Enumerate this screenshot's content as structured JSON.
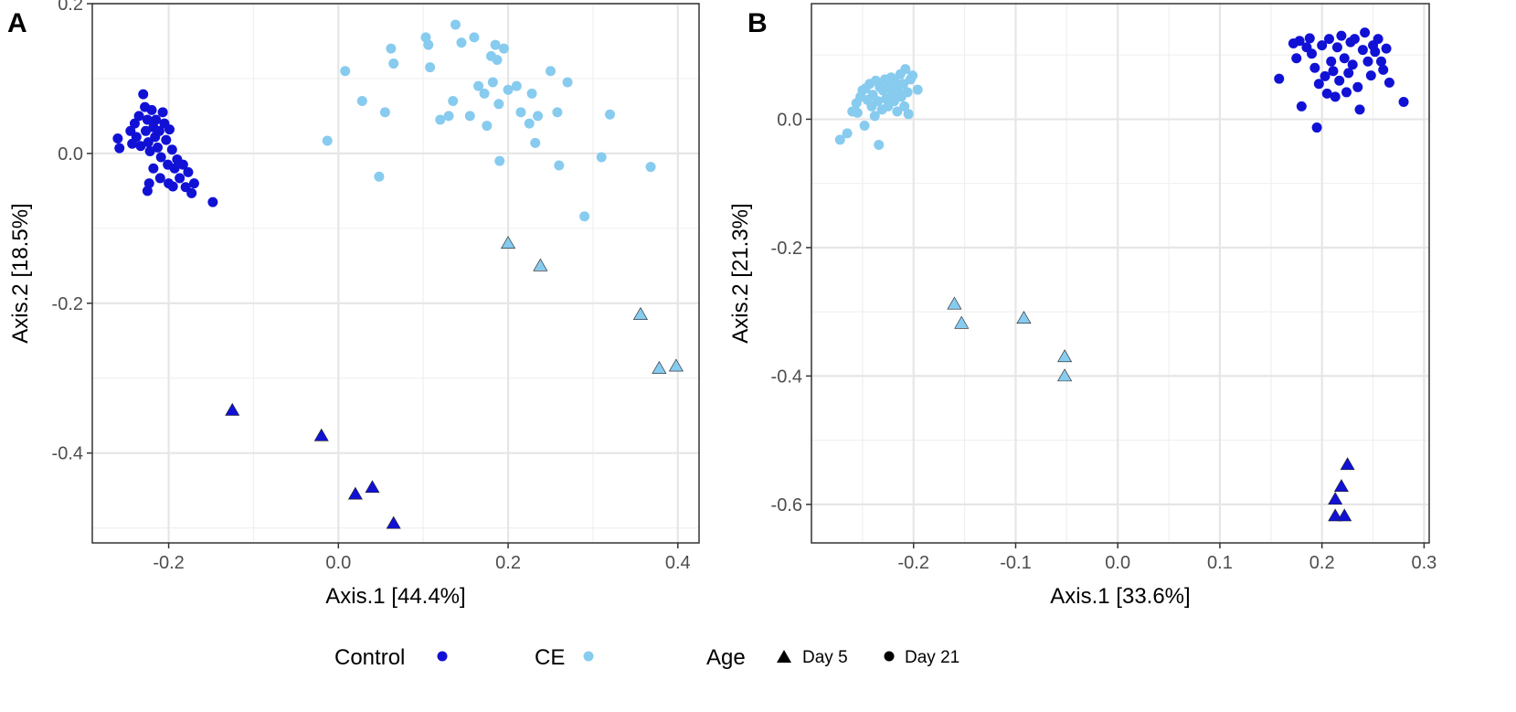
{
  "colors": {
    "control": "#1111d6",
    "ce": "#87cbef",
    "black": "#000000"
  },
  "legend": {
    "group_items": [
      {
        "label": "Control",
        "color": "#1111d6"
      },
      {
        "label": "CE",
        "color": "#87cbef"
      }
    ],
    "age_title": "Age",
    "age_items": [
      {
        "label": "Day 5",
        "shape": "triangle"
      },
      {
        "label": "Day 21",
        "shape": "circle"
      }
    ]
  },
  "chart_data": [
    {
      "type": "scatter",
      "panel_label": "A",
      "xlabel": "Axis.1   [44.4%]",
      "ylabel": "Axis.2   [18.5%]",
      "xlim": [
        -0.29,
        0.425
      ],
      "ylim": [
        -0.52,
        0.2
      ],
      "xticks": [
        -0.2,
        0.0,
        0.2,
        0.4
      ],
      "xtick_labels": [
        "-0.2",
        "0.0",
        "0.2",
        "0.4"
      ],
      "yticks": [
        -0.4,
        -0.2,
        0.0,
        0.2
      ],
      "ytick_labels": [
        "-0.4",
        "-0.2",
        "0.0",
        "0.2"
      ],
      "series": [
        {
          "name": "Control",
          "age": "Day 21",
          "shape": "circle",
          "color": "#1111d6",
          "points": [
            [
              -0.26,
              0.02
            ],
            [
              -0.258,
              0.007
            ],
            [
              -0.245,
              0.03
            ],
            [
              -0.243,
              0.013
            ],
            [
              -0.24,
              0.04
            ],
            [
              -0.238,
              0.022
            ],
            [
              -0.235,
              0.05
            ],
            [
              -0.233,
              0.01
            ],
            [
              -0.23,
              0.079
            ],
            [
              -0.228,
              0.062
            ],
            [
              -0.227,
              0.03
            ],
            [
              -0.225,
              0.045
            ],
            [
              -0.224,
              0.015
            ],
            [
              -0.222,
              0.003
            ],
            [
              -0.22,
              0.058
            ],
            [
              -0.218,
              0.035
            ],
            [
              -0.216,
              0.022
            ],
            [
              -0.215,
              0.045
            ],
            [
              -0.213,
              0.008
            ],
            [
              -0.211,
              0.03
            ],
            [
              -0.209,
              -0.005
            ],
            [
              -0.207,
              0.055
            ],
            [
              -0.205,
              0.04
            ],
            [
              -0.203,
              0.018
            ],
            [
              -0.201,
              -0.015
            ],
            [
              -0.199,
              0.032
            ],
            [
              -0.196,
              0.005
            ],
            [
              -0.193,
              -0.02
            ],
            [
              -0.19,
              -0.008
            ],
            [
              -0.187,
              -0.033
            ],
            [
              -0.183,
              -0.015
            ],
            [
              -0.18,
              -0.045
            ],
            [
              -0.177,
              -0.025
            ],
            [
              -0.173,
              -0.053
            ],
            [
              -0.17,
              -0.04
            ],
            [
              -0.2,
              -0.04
            ],
            [
              -0.195,
              -0.044
            ],
            [
              -0.21,
              -0.033
            ],
            [
              -0.218,
              -0.02
            ],
            [
              -0.223,
              -0.04
            ],
            [
              -0.225,
              -0.05
            ],
            [
              -0.148,
              -0.065
            ]
          ]
        },
        {
          "name": "CE",
          "age": "Day 21",
          "shape": "circle",
          "color": "#87cbef",
          "points": [
            [
              -0.013,
              0.017
            ],
            [
              0.008,
              0.11
            ],
            [
              0.028,
              0.07
            ],
            [
              0.048,
              -0.031
            ],
            [
              0.055,
              0.055
            ],
            [
              0.062,
              0.14
            ],
            [
              0.065,
              0.12
            ],
            [
              0.103,
              0.155
            ],
            [
              0.106,
              0.145
            ],
            [
              0.108,
              0.115
            ],
            [
              0.12,
              0.045
            ],
            [
              0.13,
              0.05
            ],
            [
              0.135,
              0.07
            ],
            [
              0.138,
              0.172
            ],
            [
              0.145,
              0.148
            ],
            [
              0.155,
              0.05
            ],
            [
              0.16,
              0.155
            ],
            [
              0.165,
              0.09
            ],
            [
              0.172,
              0.08
            ],
            [
              0.175,
              0.037
            ],
            [
              0.18,
              0.13
            ],
            [
              0.182,
              0.095
            ],
            [
              0.185,
              0.145
            ],
            [
              0.187,
              0.125
            ],
            [
              0.189,
              0.066
            ],
            [
              0.19,
              -0.01
            ],
            [
              0.195,
              0.14
            ],
            [
              0.2,
              0.085
            ],
            [
              0.21,
              0.09
            ],
            [
              0.215,
              0.055
            ],
            [
              0.225,
              0.04
            ],
            [
              0.228,
              0.08
            ],
            [
              0.232,
              0.014
            ],
            [
              0.235,
              0.05
            ],
            [
              0.25,
              0.11
            ],
            [
              0.258,
              0.055
            ],
            [
              0.26,
              -0.016
            ],
            [
              0.27,
              0.095
            ],
            [
              0.29,
              -0.084
            ],
            [
              0.31,
              -0.005
            ],
            [
              0.32,
              0.052
            ],
            [
              0.368,
              -0.018
            ]
          ]
        },
        {
          "name": "CE",
          "age": "Day 5",
          "shape": "triangle",
          "color": "#87cbef",
          "points": [
            [
              0.2,
              -0.12
            ],
            [
              0.238,
              -0.15
            ],
            [
              0.356,
              -0.215
            ],
            [
              0.378,
              -0.287
            ],
            [
              0.398,
              -0.284
            ]
          ]
        },
        {
          "name": "Control",
          "age": "Day 5",
          "shape": "triangle",
          "color": "#1111d6",
          "points": [
            [
              -0.125,
              -0.343
            ],
            [
              -0.02,
              -0.377
            ],
            [
              0.02,
              -0.455
            ],
            [
              0.04,
              -0.446
            ],
            [
              0.065,
              -0.494
            ]
          ]
        }
      ]
    },
    {
      "type": "scatter",
      "panel_label": "B",
      "xlabel": "Axis.1   [33.6%]",
      "ylabel": "Axis.2   [21.3%]",
      "xlim": [
        -0.3,
        0.305
      ],
      "ylim": [
        -0.66,
        0.18
      ],
      "xticks": [
        -0.2,
        -0.1,
        0.0,
        0.1,
        0.2,
        0.3
      ],
      "xtick_labels": [
        "-0.2",
        "-0.1",
        "0.0",
        "0.1",
        "0.2",
        "0.3"
      ],
      "yticks": [
        -0.6,
        -0.4,
        -0.2,
        0.0
      ],
      "ytick_labels": [
        "-0.6",
        "-0.4",
        "-0.2",
        "0.0"
      ],
      "series": [
        {
          "name": "CE",
          "age": "Day 21",
          "shape": "circle",
          "color": "#87cbef",
          "points": [
            [
              -0.272,
              -0.032
            ],
            [
              -0.265,
              -0.022
            ],
            [
              -0.26,
              0.012
            ],
            [
              -0.256,
              0.025
            ],
            [
              -0.255,
              0.01
            ],
            [
              -0.252,
              0.035
            ],
            [
              -0.25,
              0.045
            ],
            [
              -0.248,
              -0.01
            ],
            [
              -0.247,
              0.048
            ],
            [
              -0.245,
              0.03
            ],
            [
              -0.243,
              0.055
            ],
            [
              -0.241,
              0.02
            ],
            [
              -0.24,
              0.038
            ],
            [
              -0.238,
              0.005
            ],
            [
              -0.237,
              0.06
            ],
            [
              -0.235,
              0.028
            ],
            [
              -0.234,
              -0.04
            ],
            [
              -0.233,
              0.05
            ],
            [
              -0.231,
              0.015
            ],
            [
              -0.23,
              0.045
            ],
            [
              -0.228,
              0.062
            ],
            [
              -0.227,
              0.032
            ],
            [
              -0.225,
              0.02
            ],
            [
              -0.224,
              0.05
            ],
            [
              -0.222,
              0.065
            ],
            [
              -0.221,
              0.038
            ],
            [
              -0.219,
              0.028
            ],
            [
              -0.218,
              0.058
            ],
            [
              -0.216,
              0.012
            ],
            [
              -0.215,
              0.045
            ],
            [
              -0.213,
              0.07
            ],
            [
              -0.212,
              0.035
            ],
            [
              -0.21,
              0.055
            ],
            [
              -0.209,
              0.02
            ],
            [
              -0.208,
              0.078
            ],
            [
              -0.206,
              0.042
            ],
            [
              -0.205,
              0.008
            ],
            [
              -0.203,
              0.062
            ],
            [
              -0.201,
              0.068
            ],
            [
              -0.196,
              0.046
            ]
          ]
        },
        {
          "name": "Control",
          "age": "Day 21",
          "shape": "circle",
          "color": "#1111d6",
          "points": [
            [
              0.158,
              0.063
            ],
            [
              0.172,
              0.118
            ],
            [
              0.175,
              0.095
            ],
            [
              0.178,
              0.122
            ],
            [
              0.18,
              0.02
            ],
            [
              0.185,
              0.112
            ],
            [
              0.188,
              0.126
            ],
            [
              0.19,
              0.102
            ],
            [
              0.193,
              0.08
            ],
            [
              0.195,
              -0.013
            ],
            [
              0.197,
              0.055
            ],
            [
              0.2,
              0.115
            ],
            [
              0.203,
              0.067
            ],
            [
              0.205,
              0.04
            ],
            [
              0.207,
              0.125
            ],
            [
              0.209,
              0.09
            ],
            [
              0.211,
              0.075
            ],
            [
              0.213,
              0.035
            ],
            [
              0.215,
              0.112
            ],
            [
              0.217,
              0.06
            ],
            [
              0.219,
              0.13
            ],
            [
              0.222,
              0.095
            ],
            [
              0.224,
              0.042
            ],
            [
              0.226,
              0.072
            ],
            [
              0.228,
              0.12
            ],
            [
              0.23,
              0.085
            ],
            [
              0.232,
              0.125
            ],
            [
              0.235,
              0.05
            ],
            [
              0.237,
              0.015
            ],
            [
              0.24,
              0.108
            ],
            [
              0.242,
              0.135
            ],
            [
              0.245,
              0.09
            ],
            [
              0.248,
              0.068
            ],
            [
              0.25,
              0.115
            ],
            [
              0.252,
              0.105
            ],
            [
              0.255,
              0.125
            ],
            [
              0.258,
              0.09
            ],
            [
              0.26,
              0.077
            ],
            [
              0.263,
              0.11
            ],
            [
              0.266,
              0.057
            ],
            [
              0.28,
              0.027
            ]
          ]
        },
        {
          "name": "CE",
          "age": "Day 5",
          "shape": "triangle",
          "color": "#87cbef",
          "points": [
            [
              -0.16,
              -0.288
            ],
            [
              -0.153,
              -0.318
            ],
            [
              -0.092,
              -0.31
            ],
            [
              -0.052,
              -0.37
            ],
            [
              -0.052,
              -0.4
            ]
          ]
        },
        {
          "name": "Control",
          "age": "Day 5",
          "shape": "triangle",
          "color": "#1111d6",
          "points": [
            [
              0.225,
              -0.538
            ],
            [
              0.219,
              -0.572
            ],
            [
              0.213,
              -0.592
            ],
            [
              0.213,
              -0.618
            ],
            [
              0.222,
              -0.618
            ]
          ]
        }
      ]
    }
  ]
}
